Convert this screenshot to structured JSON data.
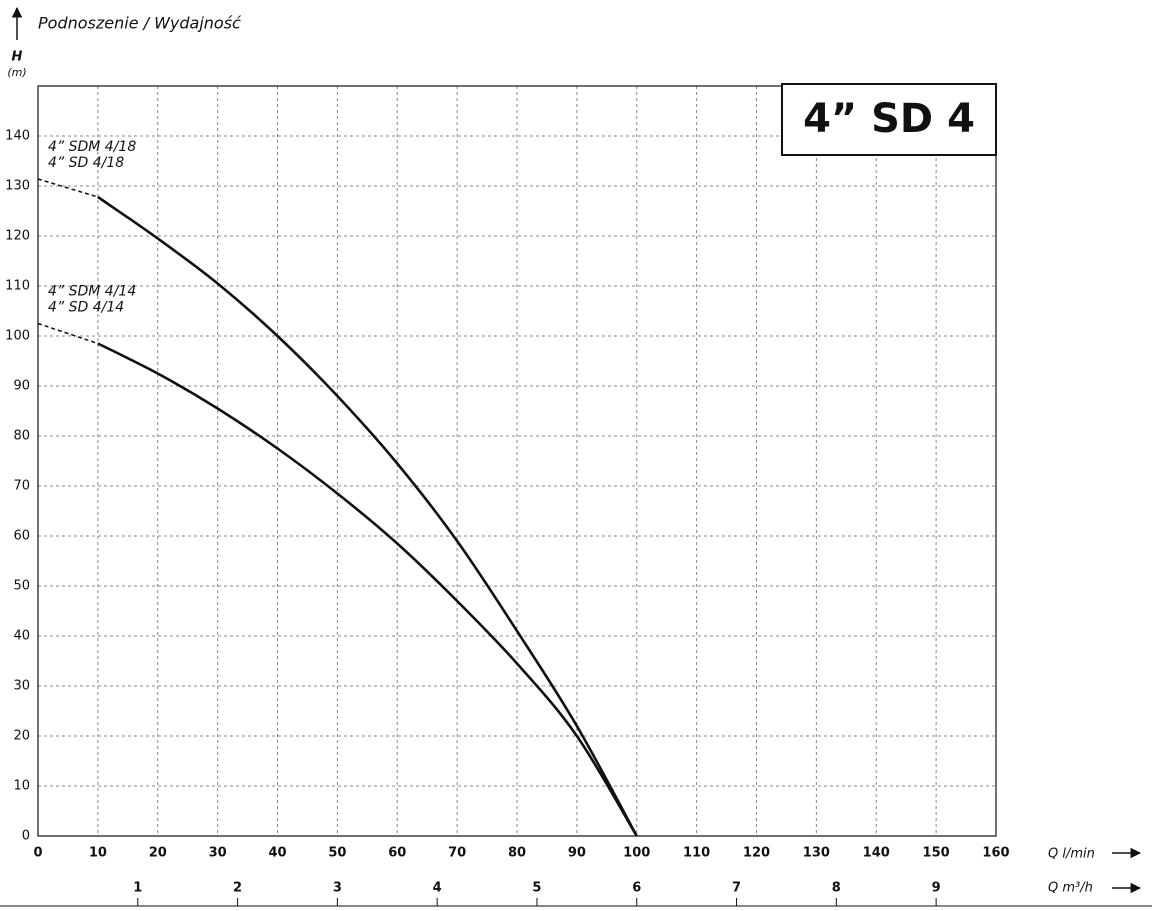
{
  "chart_data": {
    "type": "line",
    "title": "Podnoszenie / Wydajność",
    "y_label": "H",
    "y_unit": "(m)",
    "x_label": "Q l/min",
    "x2_label": "Q m³/h",
    "badge": "4” SD 4",
    "x": [
      0,
      10,
      20,
      30,
      40,
      50,
      60,
      70,
      80,
      90,
      100
    ],
    "series": [
      {
        "labels": [
          "4” SDM 4/18",
          "4” SD 4/18"
        ],
        "color": "#111111",
        "values": [
          131.4,
          127.8,
          119.5,
          110.5,
          100,
          88,
          74.5,
          59,
          41,
          22,
          0
        ]
      },
      {
        "labels": [
          "4” SDM 4/14",
          "4” SD 4/14"
        ],
        "color": "#111111",
        "values": [
          102.5,
          98.5,
          92.5,
          85.5,
          77.5,
          68.5,
          58.5,
          47,
          34.5,
          20,
          0
        ]
      }
    ],
    "dashed_first_segment": true,
    "xlim": [
      0,
      160
    ],
    "xticks": [
      0,
      10,
      20,
      30,
      40,
      50,
      60,
      70,
      80,
      90,
      100,
      110,
      120,
      130,
      140,
      150,
      160
    ],
    "x2lim": [
      0,
      9.6
    ],
    "x2ticks": [
      1,
      2,
      3,
      4,
      5,
      6,
      7,
      8,
      9
    ],
    "ylim": [
      0,
      150
    ],
    "yticks": [
      0,
      10,
      20,
      30,
      40,
      50,
      60,
      70,
      80,
      90,
      100,
      110,
      120,
      130,
      140
    ],
    "grid": true
  }
}
